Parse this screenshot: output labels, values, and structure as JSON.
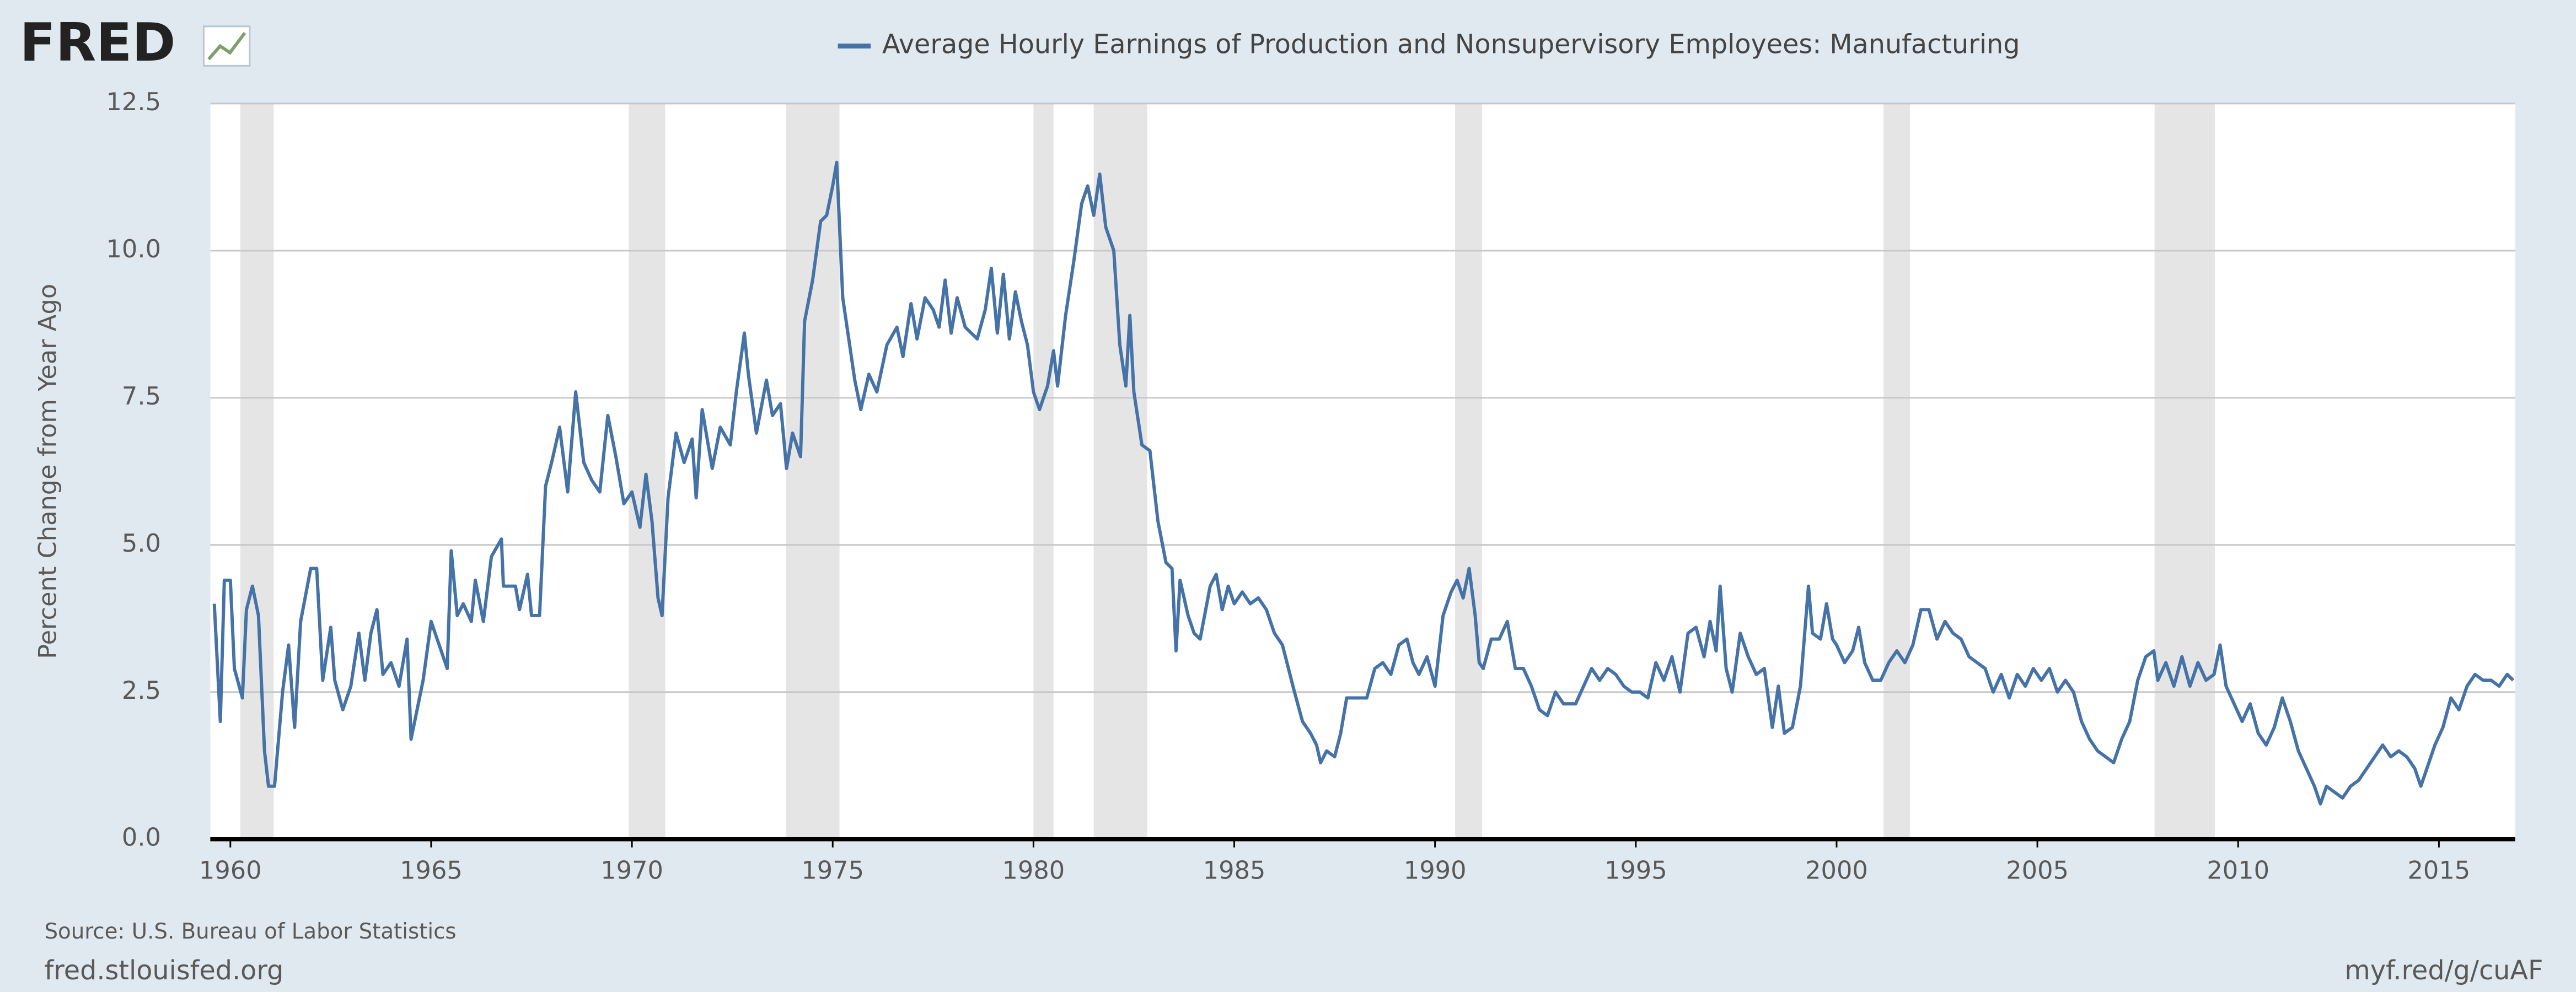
{
  "logo": "FRED",
  "chart_data": {
    "type": "line",
    "title": "Average Hourly Earnings of Production and Nonsupervisory Employees: Manufacturing",
    "y_label": "Percent Change from Year Ago",
    "source": "Source: U.S. Bureau of Labor Statistics",
    "footer_left": "fred.stlouisfed.org",
    "footer_right": "myf.red/g/cuAF",
    "xlim": [
      1959.5,
      2016.9
    ],
    "xticks": [
      1960,
      1965,
      1970,
      1975,
      1980,
      1985,
      1990,
      1995,
      2000,
      2005,
      2010,
      2015
    ],
    "ylim": [
      0,
      12.5
    ],
    "yticks": [
      {
        "value": 0,
        "label": "0.0"
      },
      2.5,
      {
        "value": 5,
        "label": "5.0"
      },
      7.5,
      {
        "value": 10,
        "label": "10.0"
      },
      12.5
    ],
    "grid": true,
    "recession_color": "#e5e5e5",
    "recessions": [
      [
        1960.25,
        1961.08
      ],
      [
        1969.92,
        1970.83
      ],
      [
        1973.83,
        1975.17
      ],
      [
        1980.0,
        1980.5
      ],
      [
        1981.5,
        1982.83
      ],
      [
        1990.5,
        1991.17
      ],
      [
        2001.17,
        2001.83
      ],
      [
        2007.92,
        2009.42
      ]
    ],
    "x": [
      1959.6,
      1959.75,
      1959.85,
      1960.0,
      1960.1,
      1960.3,
      1960.4,
      1960.55,
      1960.7,
      1960.85,
      1960.95,
      1961.1,
      1961.3,
      1961.45,
      1961.6,
      1961.75,
      1962.0,
      1962.15,
      1962.3,
      1962.5,
      1962.6,
      1962.8,
      1963.0,
      1963.2,
      1963.35,
      1963.5,
      1963.65,
      1963.8,
      1964.0,
      1964.2,
      1964.4,
      1964.5,
      1964.8,
      1965.0,
      1965.2,
      1965.4,
      1965.5,
      1965.65,
      1965.8,
      1966.0,
      1966.1,
      1966.3,
      1966.5,
      1966.75,
      1966.8,
      1967.1,
      1967.2,
      1967.4,
      1967.5,
      1967.7,
      1967.85,
      1968.0,
      1968.2,
      1968.4,
      1968.6,
      1968.8,
      1969.0,
      1969.2,
      1969.4,
      1969.6,
      1969.8,
      1970.0,
      1970.2,
      1970.35,
      1970.5,
      1970.65,
      1970.75,
      1970.9,
      1971.1,
      1971.3,
      1971.5,
      1971.6,
      1971.75,
      1972.0,
      1972.2,
      1972.45,
      1972.6,
      1972.8,
      1972.9,
      1973.1,
      1973.35,
      1973.5,
      1973.7,
      1973.85,
      1974.0,
      1974.2,
      1974.3,
      1974.5,
      1974.7,
      1974.85,
      1975.0,
      1975.1,
      1975.25,
      1975.4,
      1975.55,
      1975.7,
      1975.9,
      1976.1,
      1976.35,
      1976.6,
      1976.75,
      1976.95,
      1977.1,
      1977.3,
      1977.5,
      1977.65,
      1977.8,
      1977.95,
      1978.1,
      1978.3,
      1978.6,
      1978.8,
      1978.95,
      1979.1,
      1979.25,
      1979.4,
      1979.55,
      1979.7,
      1979.85,
      1980.0,
      1980.15,
      1980.35,
      1980.5,
      1980.6,
      1980.8,
      1981.0,
      1981.2,
      1981.35,
      1981.5,
      1981.65,
      1981.8,
      1982.0,
      1982.15,
      1982.3,
      1982.4,
      1982.5,
      1982.7,
      1982.9,
      1983.1,
      1983.3,
      1983.45,
      1983.55,
      1983.65,
      1983.85,
      1984.0,
      1984.15,
      1984.4,
      1984.55,
      1984.7,
      1984.85,
      1985.0,
      1985.2,
      1985.4,
      1985.6,
      1985.8,
      1986.0,
      1986.2,
      1986.35,
      1986.5,
      1986.7,
      1986.9,
      1987.05,
      1987.15,
      1987.3,
      1987.5,
      1987.65,
      1987.8,
      1988.0,
      1988.3,
      1988.5,
      1988.7,
      1988.9,
      1989.1,
      1989.3,
      1989.45,
      1989.6,
      1989.8,
      1990.0,
      1990.2,
      1990.4,
      1990.55,
      1990.7,
      1990.85,
      1991.0,
      1991.1,
      1991.2,
      1991.4,
      1991.6,
      1991.8,
      1992.0,
      1992.2,
      1992.4,
      1992.6,
      1992.8,
      1993.0,
      1993.2,
      1993.5,
      1993.7,
      1993.9,
      1994.1,
      1994.3,
      1994.5,
      1994.7,
      1994.9,
      1995.1,
      1995.3,
      1995.5,
      1995.7,
      1995.9,
      1996.1,
      1996.3,
      1996.5,
      1996.7,
      1996.85,
      1997.0,
      1997.1,
      1997.25,
      1997.4,
      1997.6,
      1997.8,
      1998.0,
      1998.2,
      1998.4,
      1998.55,
      1998.7,
      1998.9,
      1999.1,
      1999.3,
      1999.4,
      1999.6,
      1999.75,
      1999.9,
      2000.0,
      2000.2,
      2000.4,
      2000.55,
      2000.7,
      2000.9,
      2001.1,
      2001.3,
      2001.5,
      2001.7,
      2001.9,
      2002.1,
      2002.3,
      2002.5,
      2002.7,
      2002.9,
      2003.1,
      2003.3,
      2003.5,
      2003.7,
      2003.9,
      2004.1,
      2004.3,
      2004.5,
      2004.7,
      2004.9,
      2005.1,
      2005.3,
      2005.5,
      2005.7,
      2005.9,
      2006.1,
      2006.3,
      2006.5,
      2006.7,
      2006.9,
      2007.1,
      2007.3,
      2007.5,
      2007.7,
      2007.9,
      2008.0,
      2008.2,
      2008.4,
      2008.6,
      2008.8,
      2009.0,
      2009.2,
      2009.4,
      2009.55,
      2009.7,
      2009.9,
      2010.1,
      2010.3,
      2010.5,
      2010.7,
      2010.9,
      2011.1,
      2011.3,
      2011.5,
      2011.7,
      2011.9,
      2012.05,
      2012.2,
      2012.4,
      2012.6,
      2012.8,
      2013.0,
      2013.2,
      2013.4,
      2013.6,
      2013.8,
      2014.0,
      2014.2,
      2014.4,
      2014.55,
      2014.7,
      2014.9,
      2015.1,
      2015.3,
      2015.5,
      2015.7,
      2015.9,
      2016.1,
      2016.3,
      2016.5,
      2016.7,
      2016.85
    ],
    "series": [
      {
        "name": "Average Hourly Earnings of Production and Nonsupervisory Employees: Manufacturing",
        "color": "#4572a7",
        "values": [
          4.0,
          2.0,
          4.4,
          4.4,
          2.9,
          2.4,
          3.9,
          4.3,
          3.8,
          1.5,
          0.9,
          0.9,
          2.5,
          3.3,
          1.9,
          3.7,
          4.6,
          4.6,
          2.7,
          3.6,
          2.7,
          2.2,
          2.6,
          3.5,
          2.7,
          3.5,
          3.9,
          2.8,
          3.0,
          2.6,
          3.4,
          1.7,
          2.7,
          3.7,
          3.3,
          2.9,
          4.9,
          3.8,
          4.0,
          3.7,
          4.4,
          3.7,
          4.8,
          5.1,
          4.3,
          4.3,
          3.9,
          4.5,
          3.8,
          3.8,
          6.0,
          6.4,
          7.0,
          5.9,
          7.6,
          6.4,
          6.1,
          5.9,
          7.2,
          6.5,
          5.7,
          5.9,
          5.3,
          6.2,
          5.4,
          4.1,
          3.8,
          5.8,
          6.9,
          6.4,
          6.8,
          5.8,
          7.3,
          6.3,
          7.0,
          6.7,
          7.6,
          8.6,
          7.9,
          6.9,
          7.8,
          7.2,
          7.4,
          6.3,
          6.9,
          6.5,
          8.8,
          9.5,
          10.5,
          10.6,
          11.1,
          11.5,
          9.2,
          8.5,
          7.8,
          7.3,
          7.9,
          7.6,
          8.4,
          8.7,
          8.2,
          9.1,
          8.5,
          9.2,
          9.0,
          8.7,
          9.5,
          8.6,
          9.2,
          8.7,
          8.5,
          9.0,
          9.7,
          8.6,
          9.6,
          8.5,
          9.3,
          8.8,
          8.4,
          7.6,
          7.3,
          7.7,
          8.3,
          7.7,
          8.9,
          9.8,
          10.8,
          11.1,
          10.6,
          11.3,
          10.4,
          10.0,
          8.4,
          7.7,
          8.9,
          7.6,
          6.7,
          6.6,
          5.4,
          4.7,
          4.6,
          3.2,
          4.4,
          3.8,
          3.5,
          3.4,
          4.3,
          4.5,
          3.9,
          4.3,
          4.0,
          4.2,
          4.0,
          4.1,
          3.9,
          3.5,
          3.3,
          2.9,
          2.5,
          2.0,
          1.8,
          1.6,
          1.3,
          1.5,
          1.4,
          1.8,
          2.4,
          2.4,
          2.4,
          2.9,
          3.0,
          2.8,
          3.3,
          3.4,
          3.0,
          2.8,
          3.1,
          2.6,
          3.8,
          4.2,
          4.4,
          4.1,
          4.6,
          3.8,
          3.0,
          2.9,
          3.4,
          3.4,
          3.7,
          2.9,
          2.9,
          2.6,
          2.2,
          2.1,
          2.5,
          2.3,
          2.3,
          2.6,
          2.9,
          2.7,
          2.9,
          2.8,
          2.6,
          2.5,
          2.5,
          2.4,
          3.0,
          2.7,
          3.1,
          2.5,
          3.5,
          3.6,
          3.1,
          3.7,
          3.2,
          4.3,
          2.9,
          2.5,
          3.5,
          3.1,
          2.8,
          2.9,
          1.9,
          2.6,
          1.8,
          1.9,
          2.6,
          4.3,
          3.5,
          3.4,
          4.0,
          3.4,
          3.3,
          3.0,
          3.2,
          3.6,
          3.0,
          2.7,
          2.7,
          3.0,
          3.2,
          3.0,
          3.3,
          3.9,
          3.9,
          3.4,
          3.7,
          3.5,
          3.4,
          3.1,
          3.0,
          2.9,
          2.5,
          2.8,
          2.4,
          2.8,
          2.6,
          2.9,
          2.7,
          2.9,
          2.5,
          2.7,
          2.5,
          2.0,
          1.7,
          1.5,
          1.4,
          1.3,
          1.7,
          2.0,
          2.7,
          3.1,
          3.2,
          2.7,
          3.0,
          2.6,
          3.1,
          2.6,
          3.0,
          2.7,
          2.8,
          3.3,
          2.6,
          2.3,
          2.0,
          2.3,
          1.8,
          1.6,
          1.9,
          2.4,
          2.0,
          1.5,
          1.2,
          0.9,
          0.6,
          0.9,
          0.8,
          0.7,
          0.9,
          1.0,
          1.2,
          1.4,
          1.6,
          1.4,
          1.5,
          1.4,
          1.2,
          0.9,
          1.2,
          1.6,
          1.9,
          2.4,
          2.2,
          2.6,
          2.8,
          2.7,
          2.7,
          2.6,
          2.8,
          2.7
        ]
      }
    ]
  }
}
